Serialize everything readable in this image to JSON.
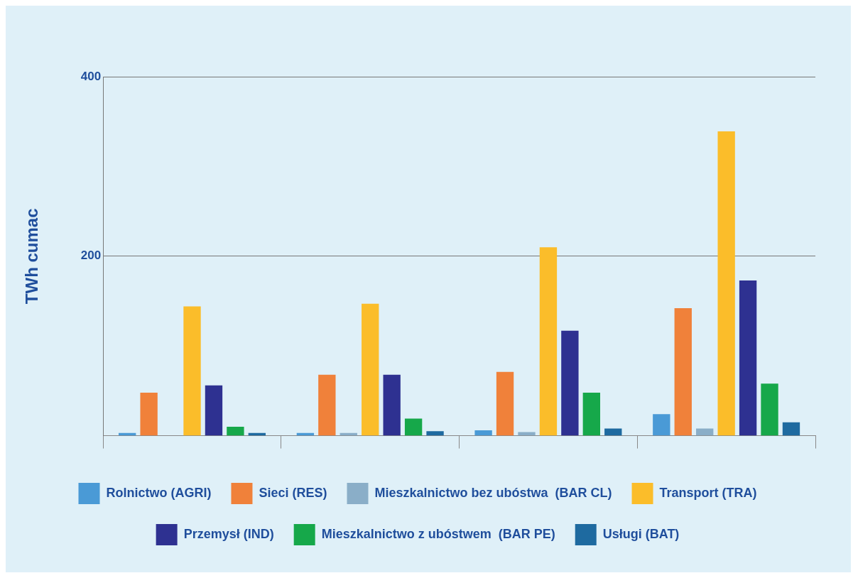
{
  "chart_data": {
    "type": "bar",
    "ylabel": "TWh cumac",
    "categories": [
      null,
      null,
      null,
      null
    ],
    "series": [
      {
        "name": "Rolnictwo (AGRI)",
        "color": "#4a9ad6",
        "values": [
          3,
          3,
          6,
          24
        ]
      },
      {
        "name": "Sieci (RES)",
        "color": "#f0813a",
        "values": [
          48,
          68,
          71,
          142
        ]
      },
      {
        "name": "Mieszkalnictwo bez ubóstwa  (BAR CL)",
        "color": "#8aaec8",
        "values": [
          0,
          3,
          4,
          8
        ]
      },
      {
        "name": "Transport (TRA)",
        "color": "#fbbd2a",
        "values": [
          144,
          147,
          210,
          339
        ]
      },
      {
        "name": "Przemysł (IND)",
        "color": "#2e3191",
        "values": [
          56,
          68,
          117,
          173
        ]
      },
      {
        "name": "Mieszkalnictwo z ubóstwem  (BAR PE)",
        "color": "#16a84a",
        "values": [
          10,
          19,
          48,
          58
        ]
      },
      {
        "name": "Usługi (BAT)",
        "color": "#1e6aa0",
        "values": [
          3,
          5,
          8,
          15
        ]
      }
    ],
    "ylim": [
      0,
      400
    ],
    "yticks": [
      200,
      400
    ],
    "grid": "y",
    "legend": "bottom"
  }
}
